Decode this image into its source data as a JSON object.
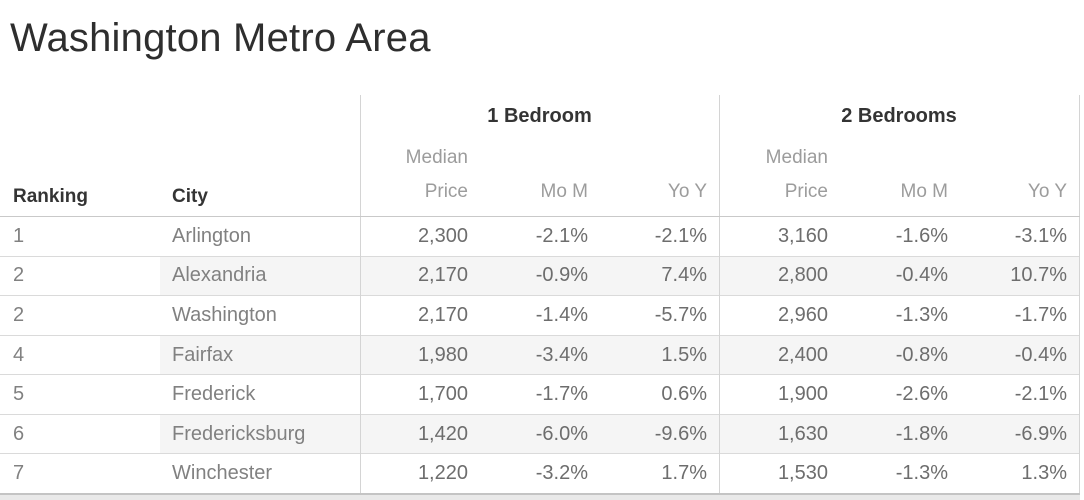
{
  "title": "Washington Metro Area",
  "table": {
    "groups": [
      {
        "label": "1 Bedroom"
      },
      {
        "label": "2 Bedrooms"
      }
    ],
    "columns": {
      "ranking": "Ranking",
      "city": "City",
      "median_price": "Median Price",
      "mom": "Mo M",
      "yoy": "Yo Y"
    },
    "rows": [
      {
        "ranking": "1",
        "city": "Arlington",
        "br1_price": "2,300",
        "br1_mom": "-2.1%",
        "br1_yoy": "-2.1%",
        "br2_price": "3,160",
        "br2_mom": "-1.6%",
        "br2_yoy": "-3.1%"
      },
      {
        "ranking": "2",
        "city": "Alexandria",
        "br1_price": "2,170",
        "br1_mom": "-0.9%",
        "br1_yoy": "7.4%",
        "br2_price": "2,800",
        "br2_mom": "-0.4%",
        "br2_yoy": "10.7%"
      },
      {
        "ranking": "2",
        "city": "Washington",
        "br1_price": "2,170",
        "br1_mom": "-1.4%",
        "br1_yoy": "-5.7%",
        "br2_price": "2,960",
        "br2_mom": "-1.3%",
        "br2_yoy": "-1.7%"
      },
      {
        "ranking": "4",
        "city": "Fairfax",
        "br1_price": "1,980",
        "br1_mom": "-3.4%",
        "br1_yoy": "1.5%",
        "br2_price": "2,400",
        "br2_mom": "-0.8%",
        "br2_yoy": "-0.4%"
      },
      {
        "ranking": "5",
        "city": "Frederick",
        "br1_price": "1,700",
        "br1_mom": "-1.7%",
        "br1_yoy": "0.6%",
        "br2_price": "1,900",
        "br2_mom": "-2.6%",
        "br2_yoy": "-2.1%"
      },
      {
        "ranking": "6",
        "city": "Fredericksburg",
        "br1_price": "1,420",
        "br1_mom": "-6.0%",
        "br1_yoy": "-9.6%",
        "br2_price": "1,630",
        "br2_mom": "-1.8%",
        "br2_yoy": "-6.9%"
      },
      {
        "ranking": "7",
        "city": "Winchester",
        "br1_price": "1,220",
        "br1_mom": "-3.2%",
        "br1_yoy": "1.7%",
        "br2_price": "1,530",
        "br2_mom": "-1.3%",
        "br2_yoy": "1.3%"
      }
    ]
  },
  "colors": {
    "title_text": "#2e2e2e",
    "header_text": "#343434",
    "subheader_text": "#9c9c9c",
    "body_text": "#6d6d6d",
    "row_band": "#f5f5f5",
    "grid_line": "#d4d4d4",
    "header_underline": "#c9c9c9"
  },
  "chart_data": {
    "type": "table",
    "title": "Washington Metro Area",
    "column_groups": [
      {
        "label": "1 Bedroom",
        "columns": [
          "Median Price",
          "Mo M",
          "Yo Y"
        ]
      },
      {
        "label": "2 Bedrooms",
        "columns": [
          "Median Price",
          "Mo M",
          "Yo Y"
        ]
      }
    ],
    "columns": [
      "Ranking",
      "City",
      "1BR Median Price",
      "1BR MoM %",
      "1BR YoY %",
      "2BR Median Price",
      "2BR MoM %",
      "2BR YoY %"
    ],
    "rows": [
      [
        1,
        "Arlington",
        2300,
        -2.1,
        -2.1,
        3160,
        -1.6,
        -3.1
      ],
      [
        2,
        "Alexandria",
        2170,
        -0.9,
        7.4,
        2800,
        -0.4,
        10.7
      ],
      [
        2,
        "Washington",
        2170,
        -1.4,
        -5.7,
        2960,
        -1.3,
        -1.7
      ],
      [
        4,
        "Fairfax",
        1980,
        -3.4,
        1.5,
        2400,
        -0.8,
        -0.4
      ],
      [
        5,
        "Frederick",
        1700,
        -1.7,
        0.6,
        1900,
        -2.6,
        -2.1
      ],
      [
        6,
        "Fredericksburg",
        1420,
        -6.0,
        -9.6,
        1630,
        -1.8,
        -6.9
      ],
      [
        7,
        "Winchester",
        1220,
        -3.2,
        1.7,
        1530,
        -1.3,
        1.3
      ]
    ],
    "layout": {
      "banded_rows": true,
      "banded_row_indexes": [
        1,
        3,
        5
      ],
      "grid": "row-lines and section dividers"
    }
  }
}
